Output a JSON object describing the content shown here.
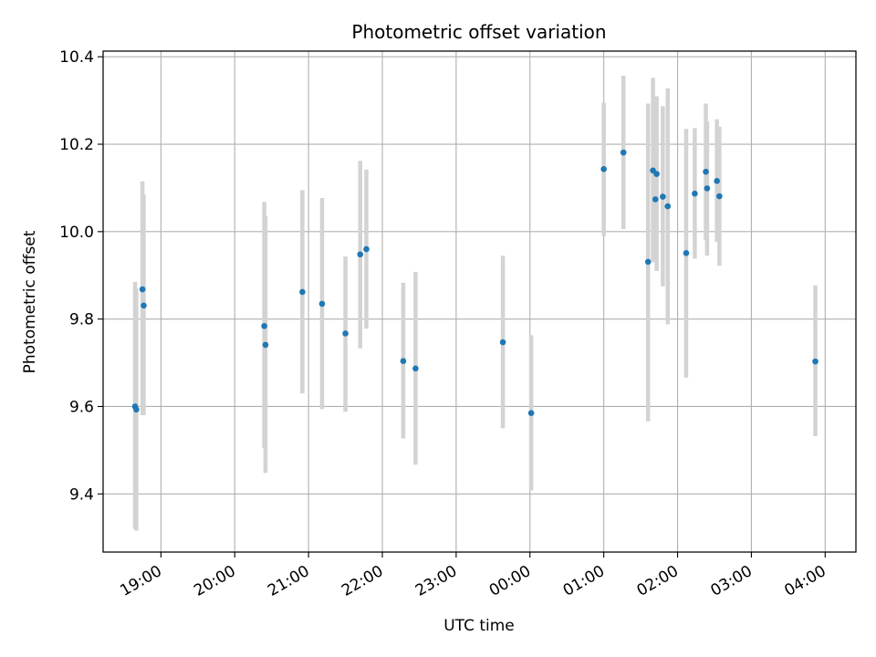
{
  "chart_data": {
    "type": "scatter",
    "title": "Photometric offset variation",
    "xlabel": "UTC time",
    "ylabel": "Photometric offset",
    "x_axis": {
      "type": "time",
      "range": [
        "2000-01-01T18:13",
        "2000-01-02T04:25"
      ],
      "tick_times": [
        "2000-01-01T19:00",
        "2000-01-01T20:00",
        "2000-01-01T21:00",
        "2000-01-01T22:00",
        "2000-01-01T23:00",
        "2000-01-02T00:00",
        "2000-01-02T01:00",
        "2000-01-02T02:00",
        "2000-01-02T03:00",
        "2000-01-02T04:00"
      ],
      "tick_labels": [
        "19:00",
        "20:00",
        "21:00",
        "22:00",
        "23:00",
        "00:00",
        "01:00",
        "02:00",
        "03:00",
        "04:00"
      ]
    },
    "y_axis": {
      "range": [
        9.267,
        10.413
      ],
      "ticks": [
        9.4,
        9.6,
        9.8,
        10.0,
        10.2,
        10.4
      ],
      "tick_labels": [
        "9.4",
        "9.6",
        "9.8",
        "10.0",
        "10.2",
        "10.4"
      ]
    },
    "grid": true,
    "marker_color": "#1f77b4",
    "errorbar_color": "#d3d3d3",
    "points": [
      {
        "time": "2000-01-01T18:39",
        "y": 9.6,
        "ylow": 9.32,
        "yhigh": 9.885
      },
      {
        "time": "2000-01-01T18:40",
        "y": 9.593,
        "ylow": 9.316,
        "yhigh": 9.87
      },
      {
        "time": "2000-01-01T18:45",
        "y": 9.868,
        "ylow": 9.58,
        "yhigh": 10.115
      },
      {
        "time": "2000-01-01T18:46",
        "y": 9.831,
        "ylow": 9.58,
        "yhigh": 10.085
      },
      {
        "time": "2000-01-01T20:24",
        "y": 9.784,
        "ylow": 9.505,
        "yhigh": 10.068
      },
      {
        "time": "2000-01-01T20:25",
        "y": 9.741,
        "ylow": 9.448,
        "yhigh": 10.036
      },
      {
        "time": "2000-01-01T20:55",
        "y": 9.862,
        "ylow": 9.63,
        "yhigh": 10.095
      },
      {
        "time": "2000-01-01T21:11",
        "y": 9.835,
        "ylow": 9.594,
        "yhigh": 10.077
      },
      {
        "time": "2000-01-01T21:30",
        "y": 9.767,
        "ylow": 9.588,
        "yhigh": 9.943
      },
      {
        "time": "2000-01-01T21:42",
        "y": 9.948,
        "ylow": 9.733,
        "yhigh": 10.162
      },
      {
        "time": "2000-01-01T21:47",
        "y": 9.96,
        "ylow": 9.778,
        "yhigh": 10.142
      },
      {
        "time": "2000-01-01T22:17",
        "y": 9.704,
        "ylow": 9.527,
        "yhigh": 9.883
      },
      {
        "time": "2000-01-01T22:27",
        "y": 9.687,
        "ylow": 9.467,
        "yhigh": 9.908
      },
      {
        "time": "2000-01-01T23:38",
        "y": 9.747,
        "ylow": 9.55,
        "yhigh": 9.945
      },
      {
        "time": "2000-01-02T00:01",
        "y": 9.585,
        "ylow": 9.408,
        "yhigh": 9.763
      },
      {
        "time": "2000-01-02T01:00",
        "y": 10.143,
        "ylow": 9.99,
        "yhigh": 10.295
      },
      {
        "time": "2000-01-02T01:16",
        "y": 10.181,
        "ylow": 10.006,
        "yhigh": 10.357
      },
      {
        "time": "2000-01-02T01:36",
        "y": 9.931,
        "ylow": 9.566,
        "yhigh": 10.293
      },
      {
        "time": "2000-01-02T01:40",
        "y": 10.14,
        "ylow": 9.93,
        "yhigh": 10.352
      },
      {
        "time": "2000-01-02T01:42",
        "y": 10.074,
        "ylow": 9.94,
        "yhigh": 10.21
      },
      {
        "time": "2000-01-02T01:43",
        "y": 10.132,
        "ylow": 9.91,
        "yhigh": 10.31
      },
      {
        "time": "2000-01-02T01:48",
        "y": 10.08,
        "ylow": 9.875,
        "yhigh": 10.287
      },
      {
        "time": "2000-01-02T01:52",
        "y": 10.058,
        "ylow": 9.788,
        "yhigh": 10.328
      },
      {
        "time": "2000-01-02T02:07",
        "y": 9.951,
        "ylow": 9.666,
        "yhigh": 10.235
      },
      {
        "time": "2000-01-02T02:14",
        "y": 10.087,
        "ylow": 9.938,
        "yhigh": 10.237
      },
      {
        "time": "2000-01-02T02:23",
        "y": 10.137,
        "ylow": 9.98,
        "yhigh": 10.293
      },
      {
        "time": "2000-01-02T02:24",
        "y": 10.099,
        "ylow": 9.945,
        "yhigh": 10.252
      },
      {
        "time": "2000-01-02T02:32",
        "y": 10.116,
        "ylow": 9.977,
        "yhigh": 10.257
      },
      {
        "time": "2000-01-02T02:34",
        "y": 10.081,
        "ylow": 9.922,
        "yhigh": 10.24
      },
      {
        "time": "2000-01-02T03:52",
        "y": 9.703,
        "ylow": 9.532,
        "yhigh": 9.877
      }
    ]
  }
}
